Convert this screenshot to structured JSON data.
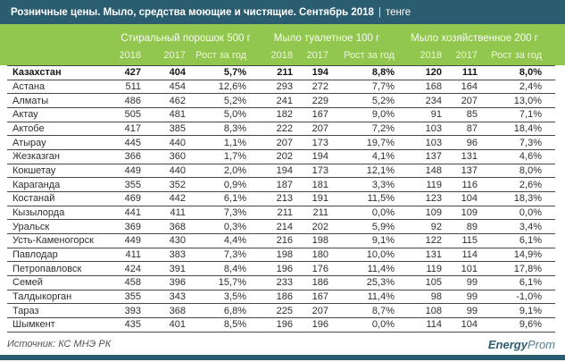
{
  "title": {
    "main": "Розничные цены. Мыло, средства моющие и чистящие. Сентябрь 2018",
    "separator": "|",
    "unit": "тенге"
  },
  "table": {
    "groups": [
      {
        "label": "Стиральный порошок 500 г"
      },
      {
        "label": "Мыло туалетное 100 г"
      },
      {
        "label": "Мыло хозяйственное 200 г"
      }
    ],
    "sub_headers": [
      "2018",
      "2017",
      "Рост за год"
    ],
    "rows": [
      {
        "region": "Казахстан",
        "bold": true,
        "values": [
          "427",
          "404",
          "5,7%",
          "211",
          "194",
          "8,8%",
          "120",
          "111",
          "8,0%"
        ]
      },
      {
        "region": "Астана",
        "bold": false,
        "values": [
          "511",
          "454",
          "12,6%",
          "293",
          "272",
          "7,7%",
          "168",
          "164",
          "2,4%"
        ]
      },
      {
        "region": "Алматы",
        "bold": false,
        "values": [
          "486",
          "462",
          "5,2%",
          "241",
          "229",
          "5,2%",
          "234",
          "207",
          "13,0%"
        ]
      },
      {
        "region": "Актау",
        "bold": false,
        "values": [
          "505",
          "481",
          "5,0%",
          "182",
          "167",
          "9,0%",
          "91",
          "85",
          "7,1%"
        ]
      },
      {
        "region": "Актобе",
        "bold": false,
        "values": [
          "417",
          "385",
          "8,3%",
          "222",
          "207",
          "7,2%",
          "103",
          "87",
          "18,4%"
        ]
      },
      {
        "region": "Атырау",
        "bold": false,
        "values": [
          "445",
          "440",
          "1,1%",
          "207",
          "173",
          "19,7%",
          "103",
          "96",
          "7,3%"
        ]
      },
      {
        "region": "Жезказган",
        "bold": false,
        "values": [
          "366",
          "360",
          "1,7%",
          "202",
          "194",
          "4,1%",
          "137",
          "131",
          "4,6%"
        ]
      },
      {
        "region": "Кокшетау",
        "bold": false,
        "values": [
          "449",
          "440",
          "2,0%",
          "194",
          "173",
          "12,1%",
          "148",
          "137",
          "8,0%"
        ]
      },
      {
        "region": "Караганда",
        "bold": false,
        "values": [
          "355",
          "352",
          "0,9%",
          "187",
          "181",
          "3,3%",
          "119",
          "116",
          "2,6%"
        ]
      },
      {
        "region": "Костанай",
        "bold": false,
        "values": [
          "469",
          "442",
          "6,1%",
          "213",
          "191",
          "11,5%",
          "123",
          "104",
          "18,3%"
        ]
      },
      {
        "region": "Кызылорда",
        "bold": false,
        "values": [
          "441",
          "411",
          "7,3%",
          "211",
          "211",
          "0,0%",
          "109",
          "109",
          "0,0%"
        ]
      },
      {
        "region": "Уральск",
        "bold": false,
        "values": [
          "369",
          "368",
          "0,3%",
          "214",
          "202",
          "5,9%",
          "92",
          "89",
          "3,4%"
        ]
      },
      {
        "region": "Усть-Каменогорск",
        "bold": false,
        "values": [
          "449",
          "430",
          "4,4%",
          "216",
          "198",
          "9,1%",
          "122",
          "115",
          "6,1%"
        ]
      },
      {
        "region": "Павлодар",
        "bold": false,
        "values": [
          "411",
          "383",
          "7,3%",
          "198",
          "180",
          "10,0%",
          "131",
          "114",
          "14,9%"
        ]
      },
      {
        "region": "Петропавловск",
        "bold": false,
        "values": [
          "424",
          "391",
          "8,4%",
          "196",
          "176",
          "11,4%",
          "119",
          "101",
          "17,8%"
        ]
      },
      {
        "region": "Семей",
        "bold": false,
        "values": [
          "458",
          "396",
          "15,7%",
          "233",
          "186",
          "25,3%",
          "105",
          "99",
          "6,1%"
        ]
      },
      {
        "region": "Талдыкорган",
        "bold": false,
        "values": [
          "355",
          "343",
          "3,5%",
          "186",
          "167",
          "11,4%",
          "98",
          "99",
          "-1,0%"
        ]
      },
      {
        "region": "Тараз",
        "bold": false,
        "values": [
          "393",
          "368",
          "6,8%",
          "225",
          "207",
          "8,7%",
          "108",
          "99",
          "9,1%"
        ]
      },
      {
        "region": "Шымкент",
        "bold": false,
        "values": [
          "435",
          "401",
          "8,5%",
          "196",
          "196",
          "0,0%",
          "114",
          "104",
          "9,6%"
        ]
      }
    ]
  },
  "footer": {
    "source": "Источник: КС МНЭ РК",
    "logo": {
      "bold": "Energy",
      "light": "Prom"
    }
  },
  "colors": {
    "teal": "#2b5d71",
    "green": "#91c74e"
  }
}
